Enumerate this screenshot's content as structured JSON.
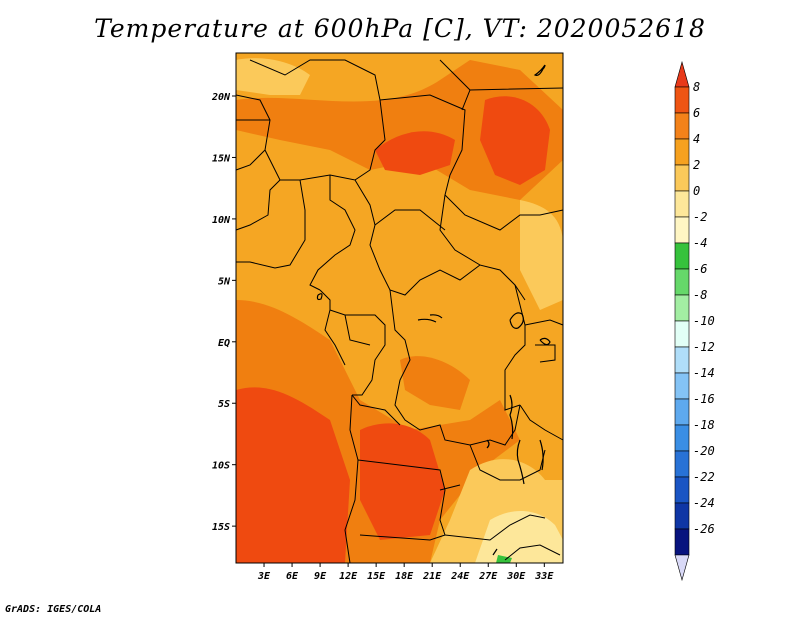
{
  "title": "Temperature at 600hPa [C], VT: 2020052618",
  "footer": "GrADS: IGES/COLA",
  "map": {
    "lon_range": [
      0,
      35
    ],
    "lat_range": [
      -18,
      23.5
    ],
    "x_ticks": [
      {
        "value": 3,
        "label": "3E"
      },
      {
        "value": 6,
        "label": "6E"
      },
      {
        "value": 9,
        "label": "9E"
      },
      {
        "value": 12,
        "label": "12E"
      },
      {
        "value": 15,
        "label": "15E"
      },
      {
        "value": 18,
        "label": "18E"
      },
      {
        "value": 21,
        "label": "21E"
      },
      {
        "value": 24,
        "label": "24E"
      },
      {
        "value": 27,
        "label": "27E"
      },
      {
        "value": 30,
        "label": "30E"
      },
      {
        "value": 33,
        "label": "33E"
      }
    ],
    "y_ticks": [
      {
        "value": 20,
        "label": "20N"
      },
      {
        "value": 15,
        "label": "15N"
      },
      {
        "value": 10,
        "label": "10N"
      },
      {
        "value": 5,
        "label": "5N"
      },
      {
        "value": 0,
        "label": "EQ"
      },
      {
        "value": -5,
        "label": "5S"
      },
      {
        "value": -10,
        "label": "10S"
      },
      {
        "value": -15,
        "label": "15S"
      }
    ],
    "background_color": "#f5a623",
    "warm_color": "#f07f10",
    "hot_color": "#ef4a10",
    "cool_color": "#fbc95a",
    "coolest_color": "#fde79a"
  },
  "colorbar": {
    "labels": [
      "8",
      "6",
      "4",
      "2",
      "0",
      "-2",
      "-4",
      "-6",
      "-8",
      "-10",
      "-12",
      "-14",
      "-16",
      "-18",
      "-20",
      "-22",
      "-24",
      "-26"
    ],
    "colors": [
      "#e8391a",
      "#ef5513",
      "#f3821a",
      "#f6a11f",
      "#fbc95a",
      "#fde79a",
      "#fff6c4",
      "#36c23c",
      "#66d86a",
      "#a3eea3",
      "#e2fff6",
      "#b0def9",
      "#84c3f5",
      "#5ea9ee",
      "#3a8ee4",
      "#2872d6",
      "#1a55c4",
      "#0f36a5",
      "#08137e",
      "#d9d9f7"
    ]
  }
}
